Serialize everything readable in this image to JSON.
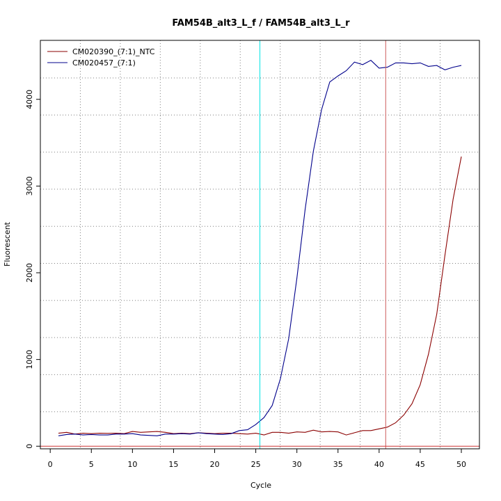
{
  "colors": {
    "series_1": "#8b0000",
    "series_2": "#00008b",
    "threshold": "#00e5e5",
    "cycle_marker": "#cd5c5c",
    "baseline": "#cd3333",
    "grid": "#7f7f7f"
  },
  "chart_data": {
    "type": "line",
    "title": "FAM54B_alt3_L_f / FAM54B_alt3_L_r",
    "xlabel": "Cycle",
    "ylabel": "Fluorescent",
    "xlim": [
      -1.2,
      52.2
    ],
    "ylim": [
      -30,
      4680
    ],
    "xticks": [
      0,
      5,
      10,
      15,
      20,
      25,
      30,
      35,
      40,
      45,
      50
    ],
    "yticks": [
      0,
      1000,
      2000,
      3000,
      4000
    ],
    "grid": true,
    "legend_position": "top-left",
    "vlines": [
      {
        "x": 25.5,
        "color_key": "threshold"
      },
      {
        "x": 40.8,
        "color_key": "cycle_marker"
      }
    ],
    "hline": {
      "y": 0,
      "color_key": "baseline"
    },
    "x": [
      1,
      2,
      3,
      4,
      5,
      6,
      7,
      8,
      9,
      10,
      11,
      12,
      13,
      14,
      15,
      16,
      17,
      18,
      19,
      20,
      21,
      22,
      23,
      24,
      25,
      26,
      27,
      28,
      29,
      30,
      31,
      32,
      33,
      34,
      35,
      36,
      37,
      38,
      39,
      40,
      41,
      42,
      43,
      44,
      45,
      46,
      47,
      48,
      49,
      50
    ],
    "series": [
      {
        "name": "CM020390_(7:1)_NTC",
        "color_key": "series_1",
        "values": [
          150,
          160,
          140,
          150,
          145,
          150,
          148,
          150,
          145,
          170,
          160,
          165,
          170,
          160,
          145,
          150,
          145,
          155,
          150,
          145,
          150,
          150,
          145,
          140,
          150,
          130,
          160,
          160,
          150,
          165,
          160,
          185,
          165,
          170,
          165,
          130,
          155,
          180,
          180,
          200,
          220,
          270,
          360,
          490,
          710,
          1060,
          1520,
          2200,
          2850,
          3340
        ]
      },
      {
        "name": "CM020457_(7:1)",
        "color_key": "series_2",
        "values": [
          120,
          135,
          140,
          130,
          135,
          130,
          130,
          140,
          140,
          145,
          130,
          125,
          120,
          140,
          140,
          145,
          140,
          155,
          145,
          140,
          135,
          145,
          180,
          190,
          250,
          330,
          470,
          780,
          1240,
          1940,
          2730,
          3400,
          3880,
          4200,
          4270,
          4330,
          4430,
          4400,
          4450,
          4360,
          4370,
          4420,
          4420,
          4410,
          4420,
          4380,
          4390,
          4340,
          4370,
          4390
        ]
      }
    ]
  }
}
